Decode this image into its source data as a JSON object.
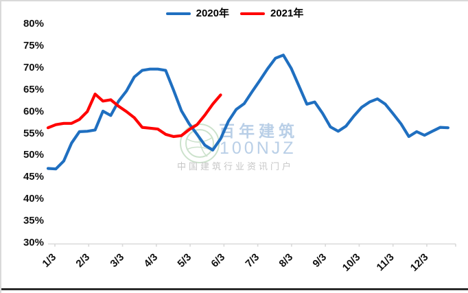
{
  "legend": {
    "items": [
      {
        "label": "2020年",
        "color": "#1F6FC0"
      },
      {
        "label": "2021年",
        "color": "#FF0000"
      }
    ]
  },
  "y_axis": {
    "labels": [
      "80%",
      "75%",
      "70%",
      "65%",
      "60%",
      "55%",
      "50%",
      "45%",
      "40%",
      "35%",
      "30%"
    ]
  },
  "x_axis": {
    "labels": [
      "1/3",
      "2/3",
      "3/3",
      "4/3",
      "5/3",
      "6/3",
      "7/3",
      "8/3",
      "9/3",
      "10/3",
      "11/3",
      "12/3"
    ]
  },
  "watermark": {
    "brand": "百年建筑",
    "code": "100NJZ",
    "tagline": "中国建筑行业资讯门户"
  },
  "chart_data": {
    "type": "line",
    "title": "",
    "xlabel": "",
    "ylabel": "",
    "y_unit": "%",
    "ylim": [
      30,
      80
    ],
    "y_tick_step": 5,
    "grid": false,
    "legend_position": "top-center",
    "x_tick_labels": [
      "1/3",
      "2/3",
      "3/3",
      "4/3",
      "5/3",
      "6/3",
      "7/3",
      "8/3",
      "9/3",
      "10/3",
      "11/3",
      "12/3"
    ],
    "x_cadence": "weekly points starting 1/3; axis labeled monthly (month/3)",
    "series": [
      {
        "name": "2020年",
        "color": "#1F6FC0",
        "values": [
          47.0,
          46.9,
          48.7,
          52.8,
          55.4,
          55.5,
          55.8,
          60.1,
          59.1,
          62.4,
          64.7,
          67.9,
          69.4,
          69.7,
          69.7,
          69.4,
          64.9,
          60.2,
          57.2,
          54.8,
          52.3,
          51.2,
          53.8,
          57.8,
          60.5,
          61.8,
          64.5,
          67.1,
          69.8,
          72.2,
          72.9,
          69.9,
          65.8,
          61.7,
          62.2,
          59.6,
          56.5,
          55.5,
          56.7,
          59.0,
          61.0,
          62.2,
          62.9,
          61.7,
          59.5,
          57.2,
          54.3,
          55.4,
          54.6,
          55.5,
          56.4,
          56.3
        ]
      },
      {
        "name": "2021年",
        "color": "#FF0000",
        "values": [
          56.3,
          57.0,
          57.3,
          57.3,
          58.2,
          60.0,
          64.0,
          62.4,
          62.7,
          61.2,
          60.0,
          58.6,
          56.4,
          56.2,
          56.0,
          54.8,
          54.3,
          54.5,
          55.9,
          57.0,
          59.2,
          61.7,
          63.8
        ]
      }
    ]
  }
}
